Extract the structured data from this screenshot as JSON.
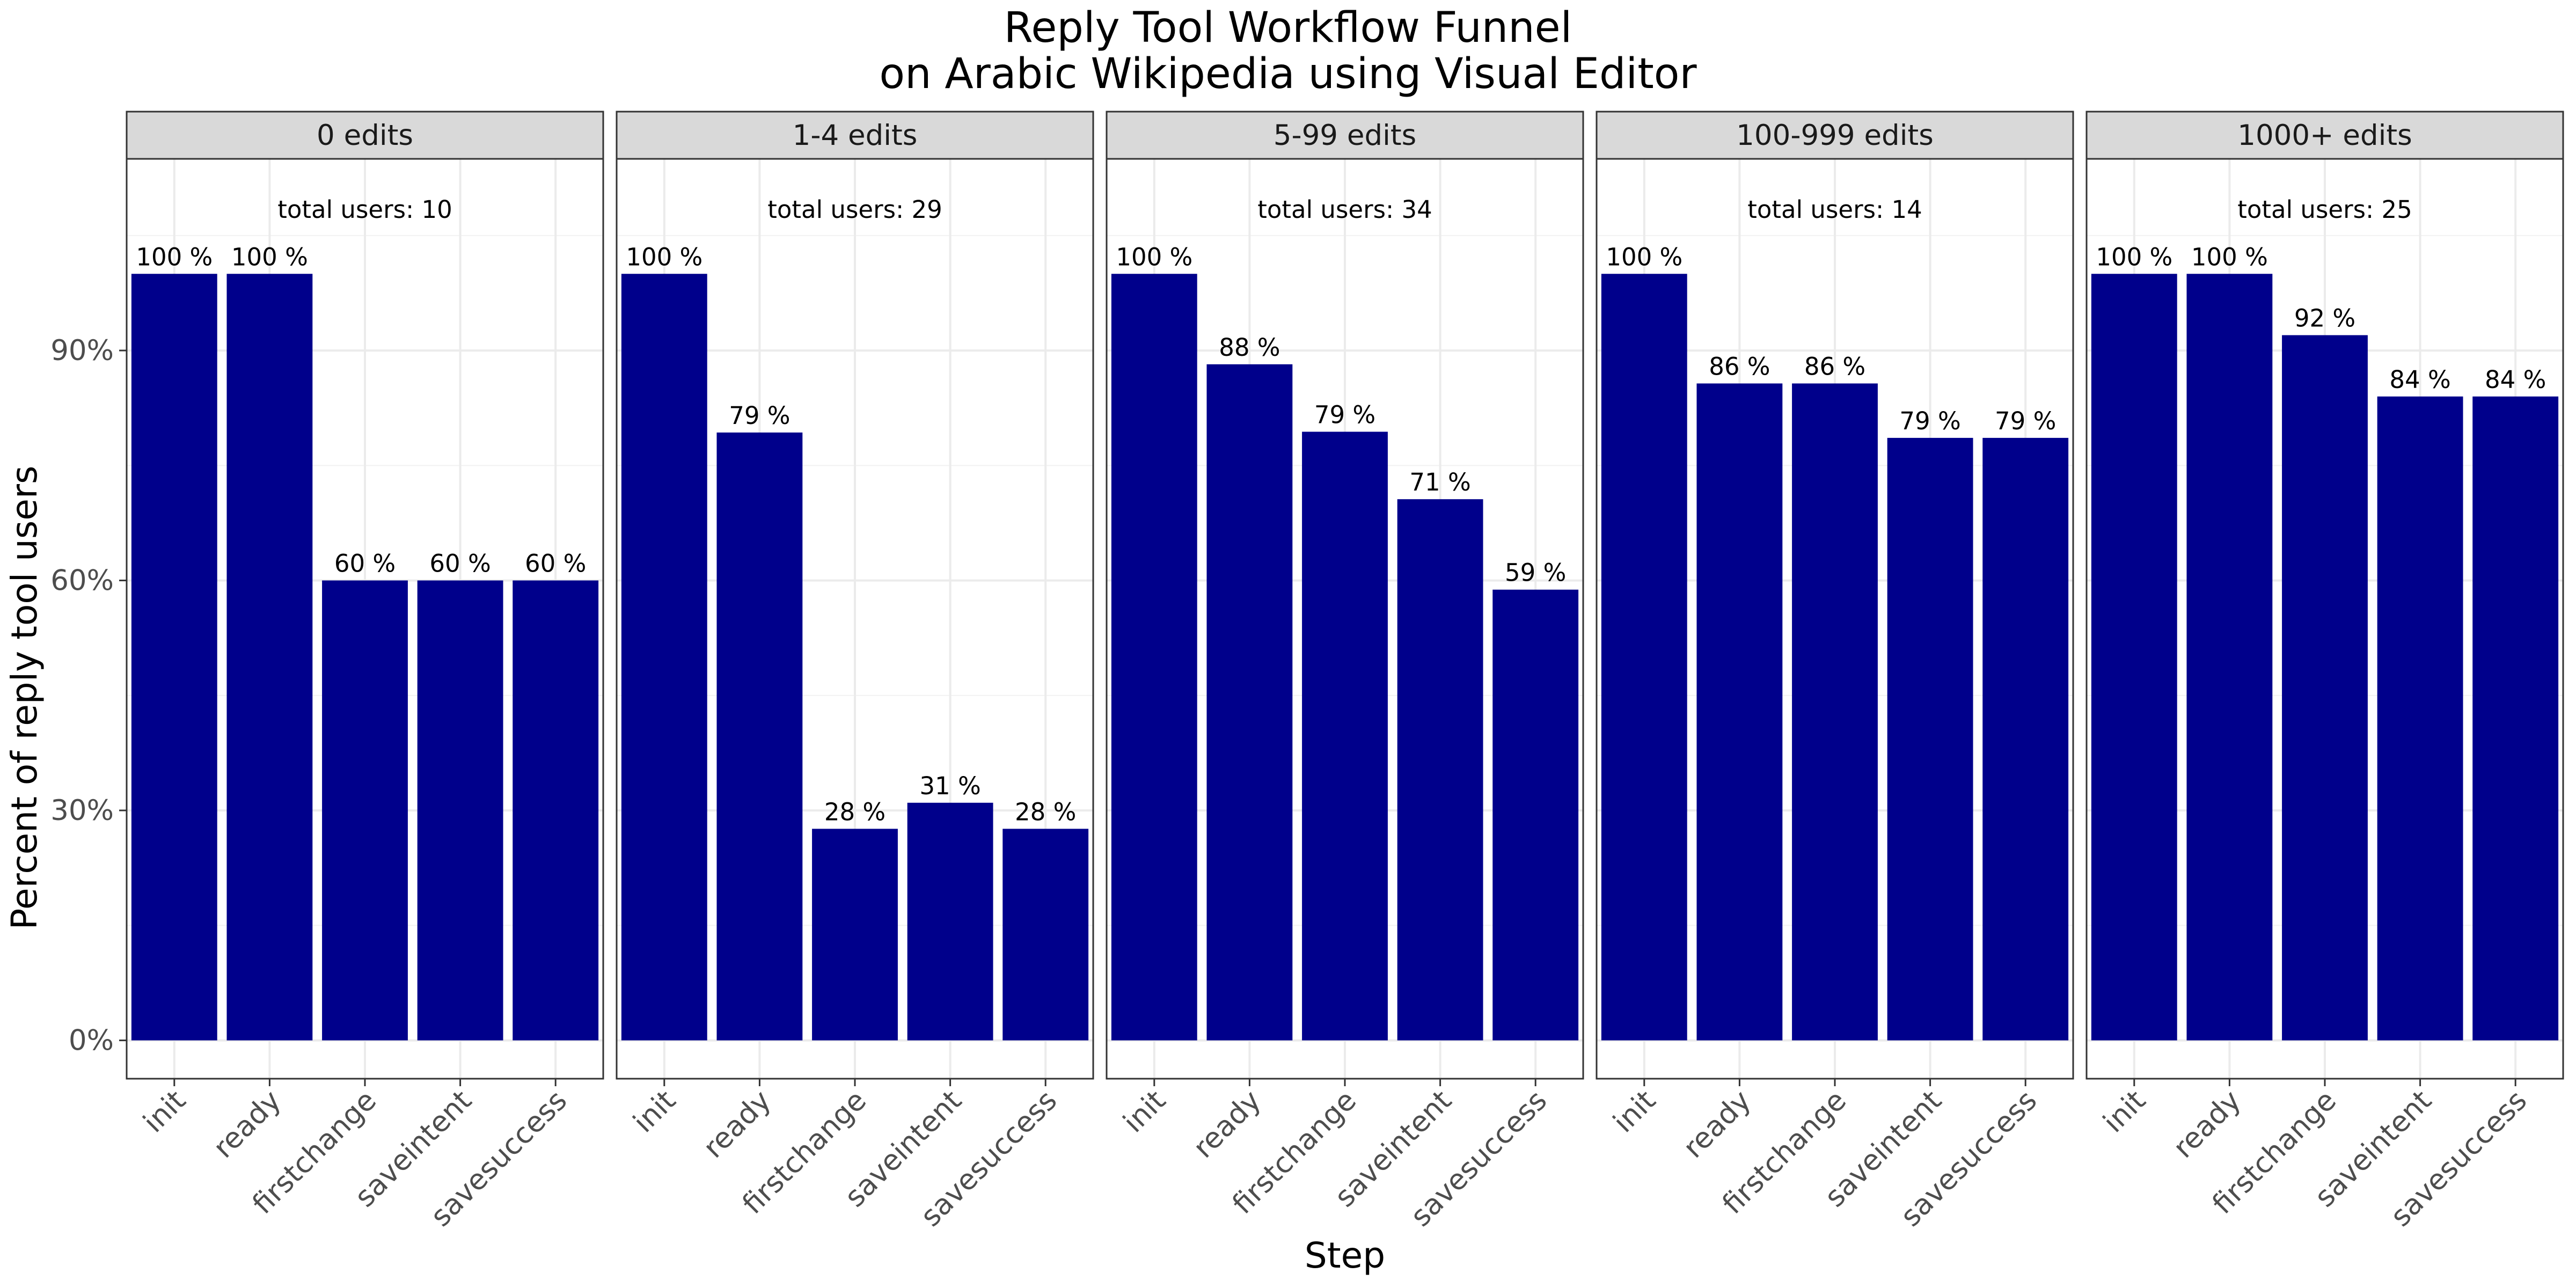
{
  "chart_data": {
    "type": "bar",
    "title": [
      "Reply Tool Workflow Funnel",
      "on Arabic Wikipedia using Visual Editor"
    ],
    "xlabel": "Step",
    "ylabel": "Percent of reply tool users",
    "categories": [
      "init",
      "ready",
      "firstchange",
      "saveintent",
      "savesuccess"
    ],
    "yticks": [
      0,
      30,
      60,
      90
    ],
    "ytick_labels": [
      "0%",
      "30%",
      "60%",
      "90%"
    ],
    "ylim": [
      -5,
      115
    ],
    "grid": true,
    "bar_color": "#00008B",
    "panels": [
      {
        "strip": "0 edits",
        "total_label": "total users: 10",
        "values": [
          100,
          100,
          60,
          60,
          60
        ],
        "labels": [
          "100 %",
          "100 %",
          "60 %",
          "60 %",
          "60 %"
        ]
      },
      {
        "strip": "1-4 edits",
        "total_label": "total users: 29",
        "values": [
          100,
          79.3,
          27.6,
          31.0,
          27.6
        ],
        "labels": [
          "100 %",
          "79 %",
          "28 %",
          "31 %",
          "28 %"
        ]
      },
      {
        "strip": "5-99 edits",
        "total_label": "total users: 34",
        "values": [
          100,
          88.2,
          79.4,
          70.6,
          58.8
        ],
        "labels": [
          "100 %",
          "88 %",
          "79 %",
          "71 %",
          "59 %"
        ]
      },
      {
        "strip": "100-999 edits",
        "total_label": "total users: 14",
        "values": [
          100,
          85.7,
          85.7,
          78.6,
          78.6
        ],
        "labels": [
          "100 %",
          "86 %",
          "86 %",
          "79 %",
          "79 %"
        ]
      },
      {
        "strip": "1000+ edits",
        "total_label": "total users: 25",
        "values": [
          100,
          100,
          92,
          84,
          84
        ],
        "labels": [
          "100 %",
          "100 %",
          "92 %",
          "84 %",
          "84 %"
        ]
      }
    ]
  }
}
